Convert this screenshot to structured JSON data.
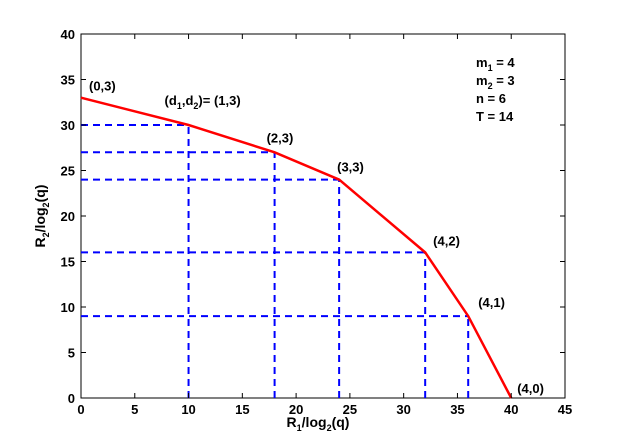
{
  "chart_data": {
    "type": "line",
    "xlabel": {
      "main": "R",
      "sub": "1",
      "mid": "/log",
      "sub2": "2",
      "end": "(q)"
    },
    "ylabel": {
      "main": "R",
      "sub": "2",
      "mid": "/log",
      "sub2": "2",
      "end": "(q)"
    },
    "xlim": [
      0,
      45
    ],
    "ylim": [
      0,
      40
    ],
    "xticks": [
      "0",
      "5",
      "10",
      "15",
      "20",
      "25",
      "30",
      "35",
      "40",
      "45"
    ],
    "yticks": [
      "0",
      "5",
      "10",
      "15",
      "20",
      "25",
      "30",
      "35",
      "40"
    ],
    "grid": false,
    "series": [
      {
        "color": "#ff0000",
        "style": "solid",
        "x": [
          0,
          10,
          18,
          24,
          32,
          36,
          40
        ],
        "y": [
          33,
          30,
          27,
          24,
          16,
          9,
          0
        ]
      }
    ],
    "guides": {
      "color": "#0000ff",
      "style": "dashed",
      "points": [
        [
          10,
          30
        ],
        [
          18,
          27
        ],
        [
          24,
          24
        ],
        [
          32,
          16
        ],
        [
          36,
          9
        ]
      ]
    },
    "annotations": [
      {
        "text": "(0,3)",
        "x": 0,
        "y": 33
      },
      {
        "text": "(d1,d2)= (1,3)",
        "x": 10,
        "y": 30,
        "rich": {
          "a": "(d",
          "s1": "1",
          "b": ",d",
          "s2": "2",
          "c": ")= (1,3)"
        }
      },
      {
        "text": "(2,3)",
        "x": 18,
        "y": 27
      },
      {
        "text": "(3,3)",
        "x": 24,
        "y": 24
      },
      {
        "text": "(4,2)",
        "x": 32,
        "y": 16
      },
      {
        "text": "(4,1)",
        "x": 36,
        "y": 9
      },
      {
        "text": "(4,0)",
        "x": 40,
        "y": 0
      }
    ],
    "parameters": [
      {
        "main": "m",
        "sub": "1",
        "rest": " = 4"
      },
      {
        "main": "m",
        "sub": "2",
        "rest": " = 3"
      },
      {
        "main": "n = 6",
        "sub": "",
        "rest": ""
      },
      {
        "main": "T = 14",
        "sub": "",
        "rest": ""
      }
    ]
  }
}
